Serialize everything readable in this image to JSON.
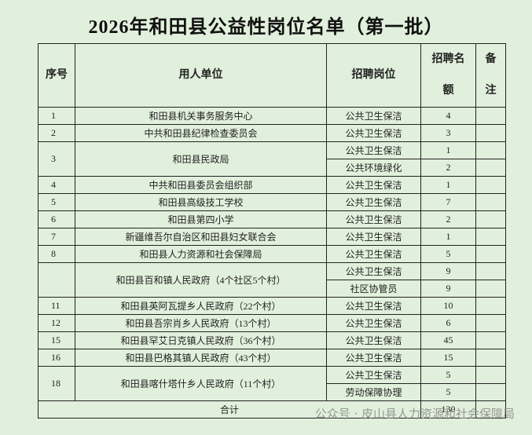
{
  "header": {
    "title": "2026年和田县公益性岗位名单（第一批）"
  },
  "table": {
    "columns": [
      "序号",
      "用人单位",
      "招聘岗位",
      "招聘名额",
      "备注"
    ],
    "rows": [
      {
        "no": "1",
        "unit": "和田县机关事务服务中心",
        "posts": [
          {
            "name": "公共卫生保洁",
            "count": "4"
          }
        ]
      },
      {
        "no": "2",
        "unit": "中共和田县纪律检查委员会",
        "posts": [
          {
            "name": "公共卫生保洁",
            "count": "3"
          }
        ]
      },
      {
        "no": "3",
        "unit": "和田县民政局",
        "posts": [
          {
            "name": "公共卫生保洁",
            "count": "1"
          },
          {
            "name": "公共环境绿化",
            "count": "2"
          }
        ]
      },
      {
        "no": "4",
        "unit": "中共和田县委员会组织部",
        "posts": [
          {
            "name": "公共卫生保洁",
            "count": "1"
          }
        ]
      },
      {
        "no": "5",
        "unit": "和田县高级技工学校",
        "posts": [
          {
            "name": "公共卫生保洁",
            "count": "7"
          }
        ]
      },
      {
        "no": "6",
        "unit": "和田县第四小学",
        "posts": [
          {
            "name": "公共卫生保洁",
            "count": "2"
          }
        ]
      },
      {
        "no": "7",
        "unit": "新疆维吾尔自治区和田县妇女联合会",
        "posts": [
          {
            "name": "公共卫生保洁",
            "count": "1"
          }
        ]
      },
      {
        "no": "8",
        "unit": "和田县人力资源和社会保障局",
        "posts": [
          {
            "name": "公共卫生保洁",
            "count": "5"
          }
        ]
      },
      {
        "no": null,
        "unit": "和田县百和镇人民政府（4个社区5个村）",
        "posts": [
          {
            "name": "公共卫生保洁",
            "count": "9"
          },
          {
            "name": "社区协管员",
            "count": "9"
          }
        ]
      },
      {
        "no": "11",
        "unit": "和田县英阿瓦提乡人民政府（22个村）",
        "posts": [
          {
            "name": "公共卫生保洁",
            "count": "10"
          }
        ]
      },
      {
        "no": "12",
        "unit": "和田县吾宗肖乡人民政府（13个村）",
        "posts": [
          {
            "name": "公共卫生保洁",
            "count": "6"
          }
        ]
      },
      {
        "no": "15",
        "unit": "和田县罕艾日克镇人民政府（36个村）",
        "posts": [
          {
            "name": "公共卫生保洁",
            "count": "45"
          }
        ]
      },
      {
        "no": "16",
        "unit": "和田县巴格其镇人民政府（43个村）",
        "posts": [
          {
            "name": "公共卫生保洁",
            "count": "15"
          }
        ]
      },
      {
        "no": "18",
        "unit": "和田县喀什塔什乡人民政府（11个村）",
        "posts": [
          {
            "name": "公共卫生保洁",
            "count": "5"
          },
          {
            "name": "劳动保障协理",
            "count": "5"
          }
        ]
      }
    ],
    "total": {
      "label": "合计",
      "count": "130"
    }
  },
  "watermark": "公众号 · 皮山县人力资源和社会保障局"
}
